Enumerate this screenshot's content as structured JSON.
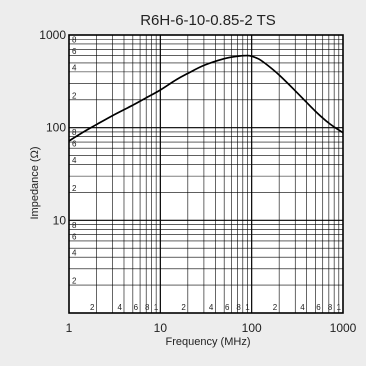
{
  "chart_data": {
    "type": "line",
    "title": "R6H-6-10-0.85-2 TS",
    "xlabel": "Frequency (MHz)",
    "ylabel": "Impedance (Ω)",
    "x_scale": "log",
    "y_scale": "log",
    "xlim": [
      1,
      1000
    ],
    "ylim": [
      1,
      1000
    ],
    "grid": true,
    "x_major_ticks": [
      {
        "value": 1,
        "label": "1"
      },
      {
        "value": 10,
        "label": "10"
      },
      {
        "value": 100,
        "label": "100"
      },
      {
        "value": 1000,
        "label": "1000"
      }
    ],
    "y_major_ticks": [
      {
        "value": 10,
        "label": "10"
      },
      {
        "value": 100,
        "label": "100"
      },
      {
        "value": 1000,
        "label": "1000"
      }
    ],
    "x_minor_ticks": [
      {
        "value": 2,
        "label": "2"
      },
      {
        "value": 4,
        "label": "4"
      },
      {
        "value": 6,
        "label": "6"
      },
      {
        "value": 8,
        "label": "8"
      },
      {
        "value": 20,
        "label": "2"
      },
      {
        "value": 40,
        "label": "4"
      },
      {
        "value": 60,
        "label": "6"
      },
      {
        "value": 80,
        "label": "8"
      },
      {
        "value": 200,
        "label": "2"
      },
      {
        "value": 400,
        "label": "4"
      },
      {
        "value": 600,
        "label": "6"
      },
      {
        "value": 800,
        "label": "8"
      }
    ],
    "x_minor_unlabeled": [
      3,
      5,
      7,
      9,
      30,
      50,
      70,
      90,
      300,
      500,
      700,
      900
    ],
    "x_decade_ones": [
      {
        "value": 10,
        "label": "1"
      },
      {
        "value": 100,
        "label": "1"
      },
      {
        "value": 1000,
        "label": "1"
      }
    ],
    "y_minor_ticks": [
      {
        "value": 2,
        "label": "2"
      },
      {
        "value": 4,
        "label": "4"
      },
      {
        "value": 6,
        "label": "6"
      },
      {
        "value": 8,
        "label": "8"
      },
      {
        "value": 20,
        "label": "2"
      },
      {
        "value": 40,
        "label": "4"
      },
      {
        "value": 60,
        "label": "6"
      },
      {
        "value": 80,
        "label": "8"
      },
      {
        "value": 200,
        "label": "2"
      },
      {
        "value": 400,
        "label": "4"
      },
      {
        "value": 600,
        "label": "6"
      },
      {
        "value": 800,
        "label": "8"
      }
    ],
    "y_minor_unlabeled": [
      3,
      5,
      7,
      9,
      30,
      50,
      70,
      90,
      300,
      500,
      700,
      900
    ],
    "series": [
      {
        "color": "#000000",
        "x": [
          1,
          1.5,
          2,
          3,
          5,
          7,
          10,
          15,
          20,
          30,
          50,
          70,
          90,
          100,
          120,
          150,
          200,
          300,
          500,
          700,
          1000
        ],
        "y": [
          72,
          92,
          108,
          135,
          175,
          210,
          255,
          330,
          385,
          470,
          555,
          590,
          600,
          590,
          550,
          470,
          370,
          250,
          150,
          112,
          88
        ]
      }
    ]
  }
}
